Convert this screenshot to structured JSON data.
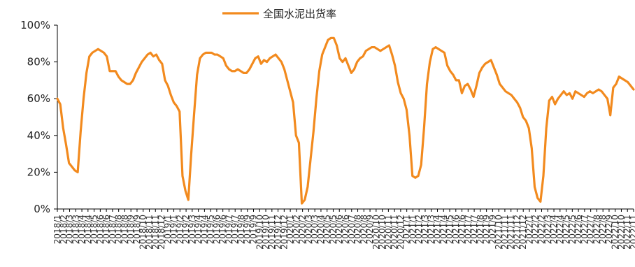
{
  "chart_data": {
    "type": "line",
    "title": "",
    "xlabel": "",
    "ylabel": "",
    "ylim": [
      0,
      100
    ],
    "yticks": [
      "0%",
      "20%",
      "40%",
      "60%",
      "80%",
      "100%"
    ],
    "ytick_values": [
      0,
      20,
      40,
      60,
      80,
      100
    ],
    "legend": {
      "placement": "top-center"
    },
    "grid": false,
    "color": "#f28a1e",
    "x_period_labels": [
      "2018/1",
      "2018/3",
      "2018/4",
      "2018/5",
      "2018/7",
      "2018/8",
      "2018/9",
      "2018/10",
      "2018/11",
      "2018/12",
      "2019/1",
      "2019/3",
      "2019/4",
      "2019/5",
      "2019/7",
      "2019/8",
      "2019/9",
      "2019/10",
      "2019/11",
      "2019/12",
      "2020/1",
      "2020/3",
      "2020/4",
      "2020/5",
      "2020/7",
      "2020/8",
      "2020/9",
      "2020/10",
      "2020/11",
      "2020/12",
      "2021/1",
      "2021/3",
      "2021/4",
      "2021/5",
      "2021/7",
      "2021/8",
      "2021/9",
      "2021/10",
      "2021/11",
      "2021/12",
      "2022/1",
      "2022/3",
      "2022/4",
      "2022/5",
      "2022/7",
      "2022/8",
      "2022/9",
      "2022/10",
      "2022/11"
    ],
    "x_tick_labels": [
      "2018/1",
      "2018/2",
      "2018/3",
      "2018/3",
      "2018/4",
      "2018/4",
      "2018/5",
      "2018/6",
      "2018/6",
      "2018/7",
      "2018/8",
      "2018/8",
      "2018/9",
      "2018/9",
      "2018/10",
      "2018/11",
      "2018/11",
      "2018/12",
      "2019/1",
      "2019/1",
      "2019/2",
      "2019/2",
      "2019/3",
      "2019/4",
      "2019/4",
      "2019/5",
      "2019/6",
      "2019/6",
      "2019/7",
      "2019/7",
      "2019/8",
      "2019/9",
      "2019/9",
      "2019/10",
      "2019/10",
      "2019/11",
      "2019/12",
      "2019/12",
      "2020/1",
      "2020/2",
      "2020/2",
      "2020/3",
      "2020/3",
      "2020/4",
      "2020/5",
      "2020/5",
      "2020/6",
      "2020/6",
      "2020/7",
      "2020/8",
      "2020/8",
      "2020/9",
      "2020/10",
      "2020/10",
      "2020/11",
      "2020/11",
      "2020/12",
      "2021/1",
      "2021/1",
      "2021/2",
      "2021/3",
      "2021/3",
      "2021/4",
      "2021/4",
      "2021/5",
      "2021/6",
      "2021/6",
      "2021/7",
      "2021/7",
      "2021/8",
      "2021/9",
      "2021/9",
      "2021/10",
      "2021/11",
      "2021/11",
      "2021/12",
      "2021/12",
      "2022/1",
      "2022/2",
      "2022/2",
      "2022/3",
      "2022/4",
      "2022/4",
      "2022/5",
      "2022/5",
      "2022/6",
      "2022/7",
      "2022/7",
      "2022/8",
      "2022/8",
      "2022/9",
      "2022/10",
      "2022/10",
      "2022/11",
      "2022/11"
    ],
    "series": [
      {
        "name": "全国水泥出货率",
        "values": [
          60,
          57,
          44,
          35,
          25,
          23,
          21,
          20,
          42,
          60,
          74,
          83,
          85,
          86,
          87,
          86,
          85,
          83,
          75,
          75,
          75,
          72,
          70,
          69,
          68,
          68,
          70,
          74,
          77,
          80,
          82,
          84,
          85,
          83,
          84,
          81,
          79,
          70,
          67,
          62,
          58,
          56,
          53,
          18,
          10,
          5,
          30,
          52,
          73,
          82,
          84,
          85,
          85,
          85,
          84,
          84,
          83,
          82,
          78,
          76,
          75,
          75,
          76,
          75,
          74,
          74,
          76,
          79,
          82,
          83,
          79,
          81,
          80,
          82,
          83,
          84,
          82,
          80,
          76,
          70,
          64,
          58,
          40,
          36,
          3,
          5,
          12,
          27,
          42,
          60,
          75,
          84,
          88,
          92,
          93,
          93,
          89,
          82,
          80,
          82,
          78,
          74,
          76,
          80,
          82,
          83,
          86,
          87,
          88,
          88,
          87,
          86,
          87,
          88,
          89,
          84,
          78,
          69,
          63,
          60,
          54,
          40,
          18,
          17,
          18,
          24,
          44,
          68,
          80,
          87,
          88,
          87,
          86,
          85,
          78,
          75,
          73,
          70,
          70,
          63,
          67,
          68,
          65,
          61,
          67,
          74,
          77,
          79,
          80,
          81,
          77,
          73,
          68,
          66,
          64,
          63,
          62,
          60,
          58,
          55,
          50,
          48,
          44,
          33,
          12,
          6,
          4,
          18,
          44,
          59,
          61,
          57,
          60,
          62,
          64,
          62,
          63,
          60,
          64,
          63,
          62,
          61,
          63,
          64,
          63,
          64,
          65,
          64,
          62,
          60,
          51,
          66,
          68,
          72,
          71,
          70,
          69,
          67,
          65
        ]
      }
    ]
  }
}
